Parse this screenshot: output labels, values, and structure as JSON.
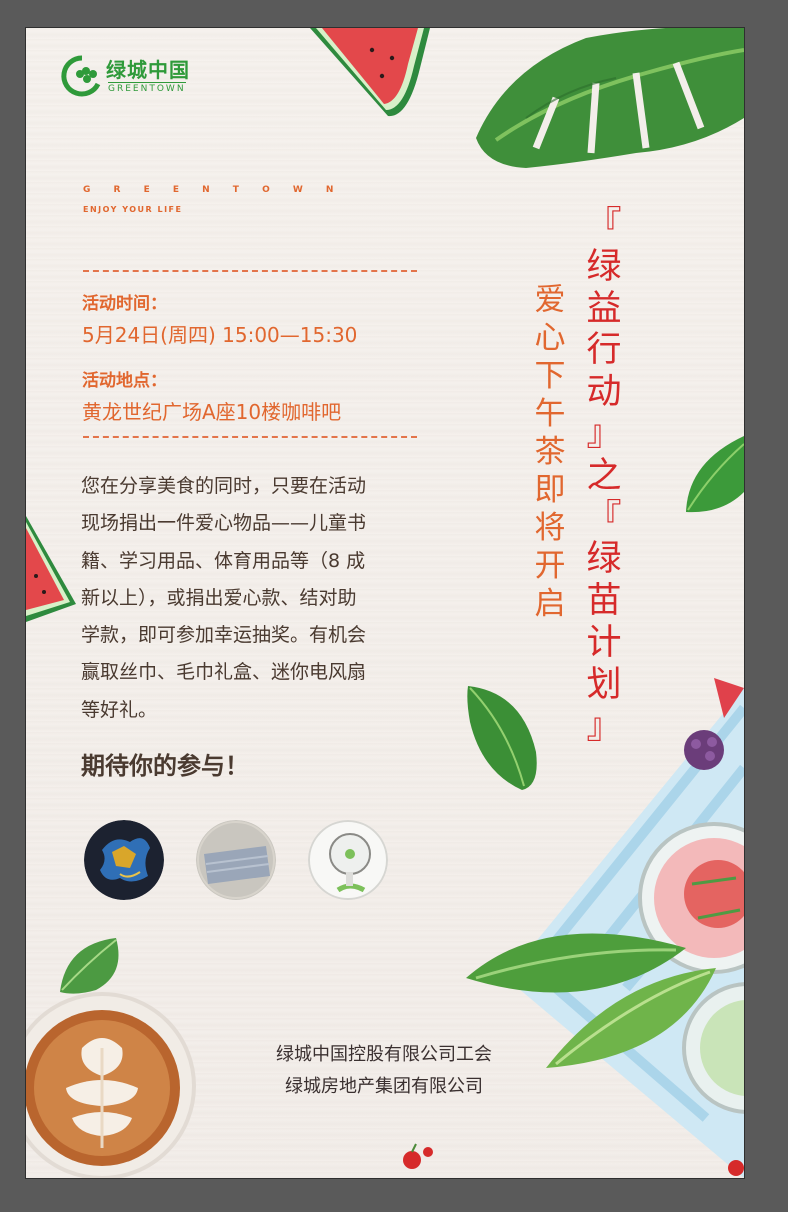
{
  "logo": {
    "cn": "绿城中国",
    "en": "GREENTOWN"
  },
  "brand": {
    "name": "G R E E N T O W N",
    "tagline": "ENJOY YOUR LIFE"
  },
  "event": {
    "time_label": "活动时间：",
    "time_value": "5月24日(周四) 15:00—15:30",
    "place_label": "活动地点：",
    "place_value": "黄龙世纪广场A座10楼咖啡吧"
  },
  "body_lines": [
    "您在分享美食的同时，只要在活动",
    "现场捐出一件爱心物品——儿童书",
    "籍、学习用品、体育用品等（8 成",
    "新以上），或捐出爱心款、结对助",
    "学款，即可参加幸运抽奖。有机会",
    "赢取丝巾、毛巾礼盒、迷你电风扇",
    "等好礼。"
  ],
  "closing": "期待你的参与！",
  "title_chars": [
    "『",
    "绿",
    "益",
    "行",
    "动",
    "』",
    "之",
    "『",
    "绿",
    "苗",
    "计",
    "划",
    "』"
  ],
  "subtitle_chars": [
    "爱",
    "心",
    "下",
    "午",
    "茶",
    "即",
    "将",
    "开",
    "启"
  ],
  "organizers": [
    "绿城中国控股有限公司工会",
    "绿城房地产集团有限公司"
  ],
  "prizes": [
    "silk-scarf-prize",
    "towel-gift-box-prize",
    "mini-fan-prize"
  ],
  "colors": {
    "accent_orange": "#e1672f",
    "title_red": "#d62a2a",
    "brand_green": "#2f9a3a",
    "body_text": "#4a3a30"
  }
}
